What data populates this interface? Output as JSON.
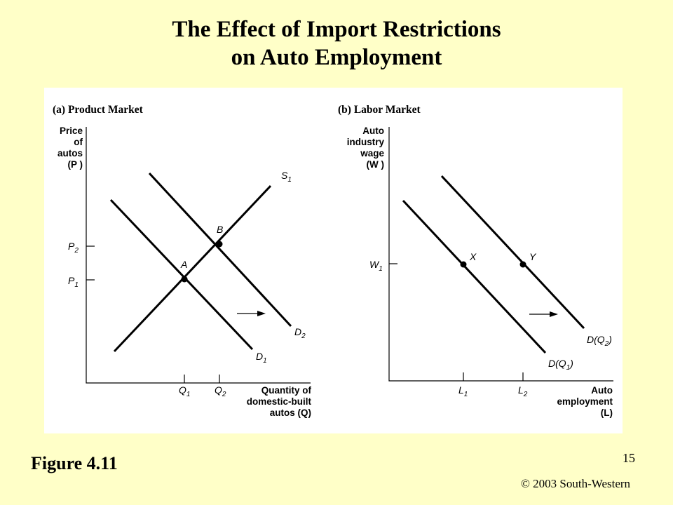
{
  "slide": {
    "title_line1": "The Effect of Import Restrictions",
    "title_line2": "on Auto Employment",
    "figure_label": "Figure 4.11",
    "page_number": "15",
    "copyright": "© 2003 South-Western"
  },
  "panel_a": {
    "title": "(a) Product Market",
    "y_axis_label": [
      "Price",
      "of",
      "autos",
      "(P )"
    ],
    "x_axis_label": [
      "Quantity of",
      "domestic-built",
      "autos (Q)"
    ],
    "y_ticks": [
      {
        "main": "P",
        "sub": "2"
      },
      {
        "main": "P",
        "sub": "1"
      }
    ],
    "x_ticks": [
      {
        "main": "Q",
        "sub": "1"
      },
      {
        "main": "Q",
        "sub": "2"
      }
    ],
    "curves": [
      {
        "main": "S",
        "sub": "1"
      },
      {
        "main": "D",
        "sub": "1"
      },
      {
        "main": "D",
        "sub": "2"
      }
    ],
    "points": [
      "A",
      "B"
    ]
  },
  "panel_b": {
    "title": "(b) Labor Market",
    "y_axis_label": [
      "Auto",
      "industry",
      "wage",
      "(W )"
    ],
    "x_axis_label": [
      "Auto",
      "employment",
      "(L)"
    ],
    "y_ticks": [
      {
        "main": "W",
        "sub": "1"
      }
    ],
    "x_ticks": [
      {
        "main": "L",
        "sub": "1"
      },
      {
        "main": "L",
        "sub": "2"
      }
    ],
    "curves": [
      {
        "main": "D(Q",
        "sub": "1",
        "end": ")"
      },
      {
        "main": "D(Q",
        "sub": "2",
        "end": ")"
      }
    ],
    "points": [
      "X",
      "Y"
    ]
  }
}
